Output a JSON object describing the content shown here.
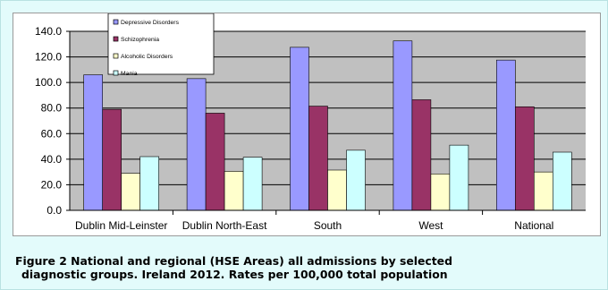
{
  "caption": {
    "line1": "Figure 2   National and regional (HSE Areas) all admissions by selected",
    "line2": "diagnostic groups. Ireland 2012. Rates per 100,000 total population"
  },
  "chart_data": {
    "type": "bar",
    "categories": [
      "Dublin Mid-Leinster",
      "Dublin North-East",
      "South",
      "West",
      "National"
    ],
    "series": [
      {
        "name": "Depressive Disorders",
        "color": "#9999ff",
        "values": [
          106.0,
          103.0,
          127.5,
          132.5,
          117.5
        ]
      },
      {
        "name": "Schizophrenia",
        "color": "#993366",
        "values": [
          79.0,
          76.0,
          81.5,
          86.5,
          81.0
        ]
      },
      {
        "name": "Alcoholic Disorders",
        "color": "#ffffcc",
        "values": [
          29.0,
          30.5,
          31.5,
          28.5,
          30.0
        ]
      },
      {
        "name": "Mania",
        "color": "#ccffff",
        "values": [
          42.0,
          41.5,
          47.0,
          51.0,
          45.5
        ]
      }
    ],
    "y_ticks": [
      "0.0",
      "20.0",
      "40.0",
      "60.0",
      "80.0",
      "100.0",
      "120.0",
      "140.0"
    ],
    "ylim": [
      0,
      140
    ],
    "grid": true,
    "legend_position": "top-left",
    "plot_background": "#c0c0c0"
  }
}
